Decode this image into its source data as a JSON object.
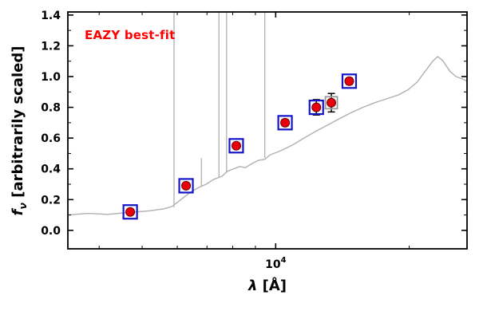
{
  "figure": {
    "annotation": {
      "text": "EAZY best-fit",
      "color": "#ff0000"
    },
    "axes": {
      "xlabel": {
        "symbol": "λ",
        "rest": " [Å]"
      },
      "ylabel": {
        "symbol": "f",
        "subscript": "ν",
        "rest": " [arbitrarily scaled]"
      }
    }
  },
  "chart_data": {
    "type": "line",
    "title": "",
    "xlabel": "λ [Å]",
    "ylabel": "f_ν [arbitrarily scaled]",
    "x_scale": "log",
    "xlim": [
      3400,
      27000
    ],
    "ylim": [
      -0.12,
      1.42
    ],
    "grid": false,
    "legend": "none",
    "annotation": "EAZY best-fit",
    "xticks": {
      "major": [
        {
          "value": 10000,
          "base": "10",
          "exp": "4"
        }
      ],
      "minor": [
        4000,
        5000,
        6000,
        7000,
        8000,
        9000,
        20000
      ]
    },
    "yticks": {
      "major": [
        {
          "value": 0.0,
          "label": "0.0"
        },
        {
          "value": 0.2,
          "label": "0.2"
        },
        {
          "value": 0.4,
          "label": "0.4"
        },
        {
          "value": 0.6,
          "label": "0.6"
        },
        {
          "value": 0.8,
          "label": "0.8"
        },
        {
          "value": 1.0,
          "label": "1.0"
        },
        {
          "value": 1.2,
          "label": "1.2"
        },
        {
          "value": 1.4,
          "label": "1.4"
        }
      ],
      "minor": [
        0.1,
        0.3,
        0.5,
        0.7,
        0.9,
        1.1,
        1.3
      ]
    },
    "series": [
      {
        "name": "best-fit-template-spectrum",
        "type": "line",
        "color": "#b0b0b0",
        "points": [
          [
            3400,
            0.1
          ],
          [
            3770,
            0.11
          ],
          [
            4180,
            0.104
          ],
          [
            4640,
            0.116
          ],
          [
            5150,
            0.126
          ],
          [
            5590,
            0.14
          ],
          [
            5830,
            0.155
          ],
          [
            6020,
            0.185
          ],
          [
            6240,
            0.22
          ],
          [
            6480,
            0.255
          ],
          [
            6720,
            0.28
          ],
          [
            6970,
            0.3
          ],
          [
            7230,
            0.33
          ],
          [
            7570,
            0.352
          ],
          [
            7790,
            0.385
          ],
          [
            8290,
            0.415
          ],
          [
            8550,
            0.408
          ],
          [
            8820,
            0.432
          ],
          [
            9130,
            0.455
          ],
          [
            9450,
            0.462
          ],
          [
            9700,
            0.49
          ],
          [
            10300,
            0.52
          ],
          [
            10920,
            0.555
          ],
          [
            11590,
            0.6
          ],
          [
            12320,
            0.645
          ],
          [
            13100,
            0.685
          ],
          [
            13900,
            0.725
          ],
          [
            14800,
            0.765
          ],
          [
            15730,
            0.8
          ],
          [
            16720,
            0.83
          ],
          [
            17200,
            0.842
          ],
          [
            17780,
            0.855
          ],
          [
            18900,
            0.88
          ],
          [
            19900,
            0.915
          ],
          [
            20850,
            0.965
          ],
          [
            21800,
            1.04
          ],
          [
            22600,
            1.1
          ],
          [
            23200,
            1.13
          ],
          [
            23850,
            1.1
          ],
          [
            24700,
            1.035
          ],
          [
            25500,
            1.0
          ],
          [
            26350,
            0.985
          ],
          [
            27000,
            0.97
          ]
        ]
      },
      {
        "name": "emission-lines",
        "type": "spikes",
        "color": "#b0b0b0",
        "lines": [
          {
            "wavelength": 5900,
            "y_base": 0.15,
            "y_peak": 2.0
          },
          {
            "wavelength": 6800,
            "y_base": 0.29,
            "y_peak": 0.47
          },
          {
            "wavelength": 7450,
            "y_base": 0.34,
            "y_peak": 2.0
          },
          {
            "wavelength": 7750,
            "y_base": 0.38,
            "y_peak": 2.0
          },
          {
            "wavelength": 9450,
            "y_base": 0.47,
            "y_peak": 2.0
          }
        ]
      },
      {
        "name": "observed-photometry",
        "type": "scatter",
        "marker": "circle",
        "marker_color": "#e8000b",
        "square_colors": {
          "blue": "#1414c8",
          "gray": "#9a9a9a"
        },
        "points": [
          {
            "wavelength": 4700,
            "flux": 0.12,
            "err": 0.015,
            "square": "blue"
          },
          {
            "wavelength": 6280,
            "flux": 0.29,
            "err": 0.015,
            "square": "blue"
          },
          {
            "wavelength": 8150,
            "flux": 0.55,
            "err": 0.015,
            "square": "blue"
          },
          {
            "wavelength": 10500,
            "flux": 0.7,
            "err": 0.02,
            "square": "blue"
          },
          {
            "wavelength": 12350,
            "flux": 0.8,
            "err": 0.05,
            "square": "blue"
          },
          {
            "wavelength": 13350,
            "flux": 0.83,
            "err": 0.06,
            "square": "gray"
          },
          {
            "wavelength": 14650,
            "flux": 0.97,
            "err": 0.02,
            "square": "blue"
          }
        ]
      }
    ]
  }
}
